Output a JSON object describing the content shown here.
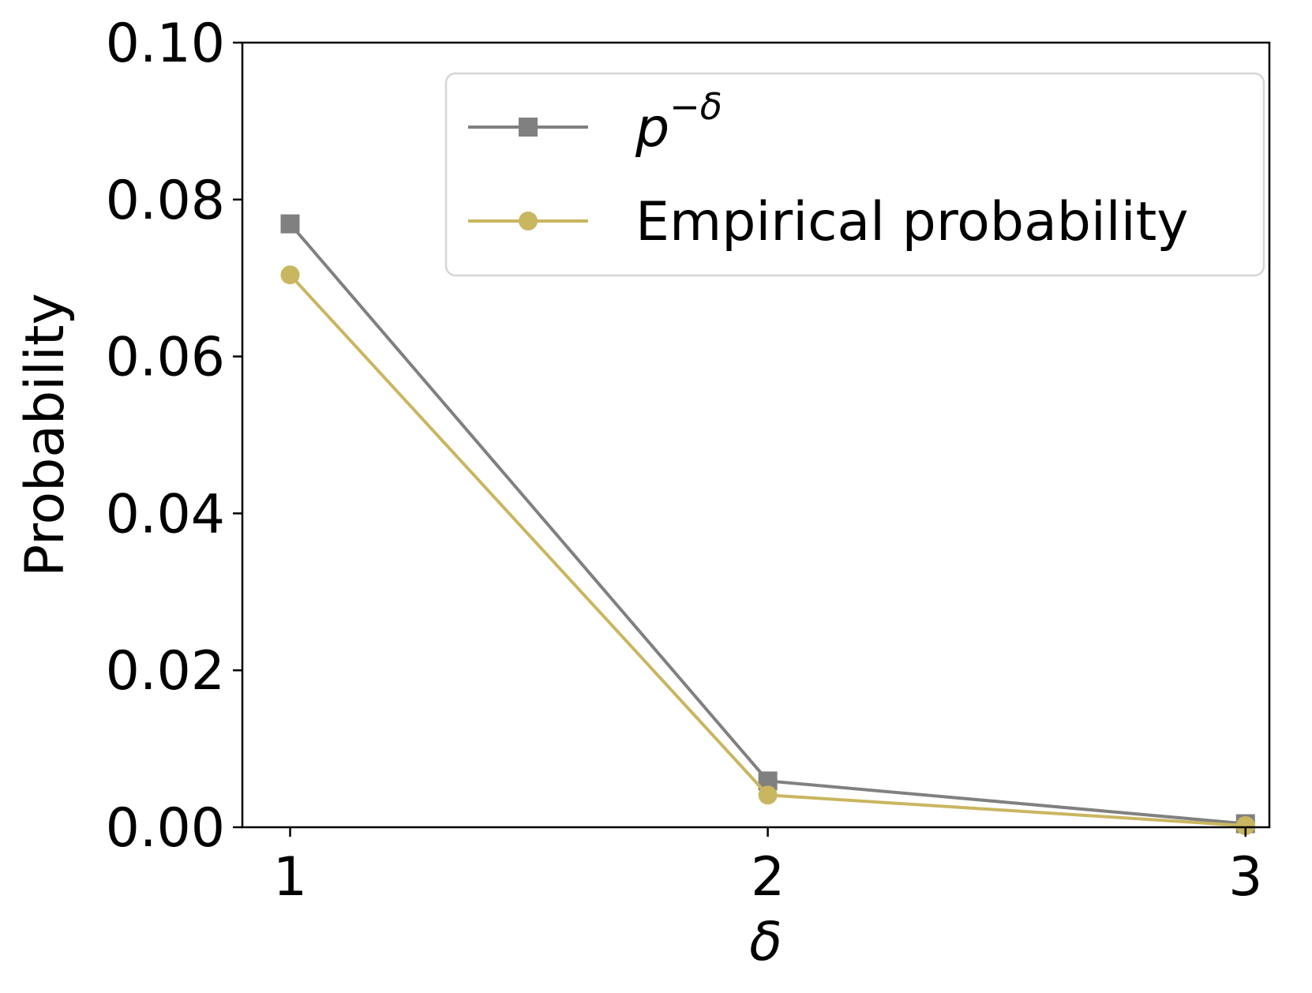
{
  "chart_data": {
    "type": "line",
    "x": [
      1,
      2,
      3
    ],
    "series": [
      {
        "name": "p^{−δ}",
        "name_base": "p",
        "name_sup": "−δ",
        "values": [
          0.0769,
          0.0059,
          0.00045
        ],
        "color": "#808080",
        "marker": "square"
      },
      {
        "name": "Empirical probability",
        "values": [
          0.0704,
          0.0041,
          0.0002
        ],
        "color": "#c9b660",
        "marker": "circle"
      }
    ],
    "xlabel": "δ",
    "ylabel": "Probability",
    "xlim": [
      0.9,
      3.05
    ],
    "ylim": [
      0.0,
      0.1
    ],
    "xticks": [
      1,
      2,
      3
    ],
    "xtick_labels": [
      "1",
      "2",
      "3"
    ],
    "yticks": [
      0.0,
      0.02,
      0.04,
      0.06,
      0.08,
      0.1
    ],
    "ytick_labels": [
      "0.00",
      "0.02",
      "0.04",
      "0.06",
      "0.08",
      "0.10"
    ],
    "grid": false,
    "legend_position": "top-right"
  }
}
